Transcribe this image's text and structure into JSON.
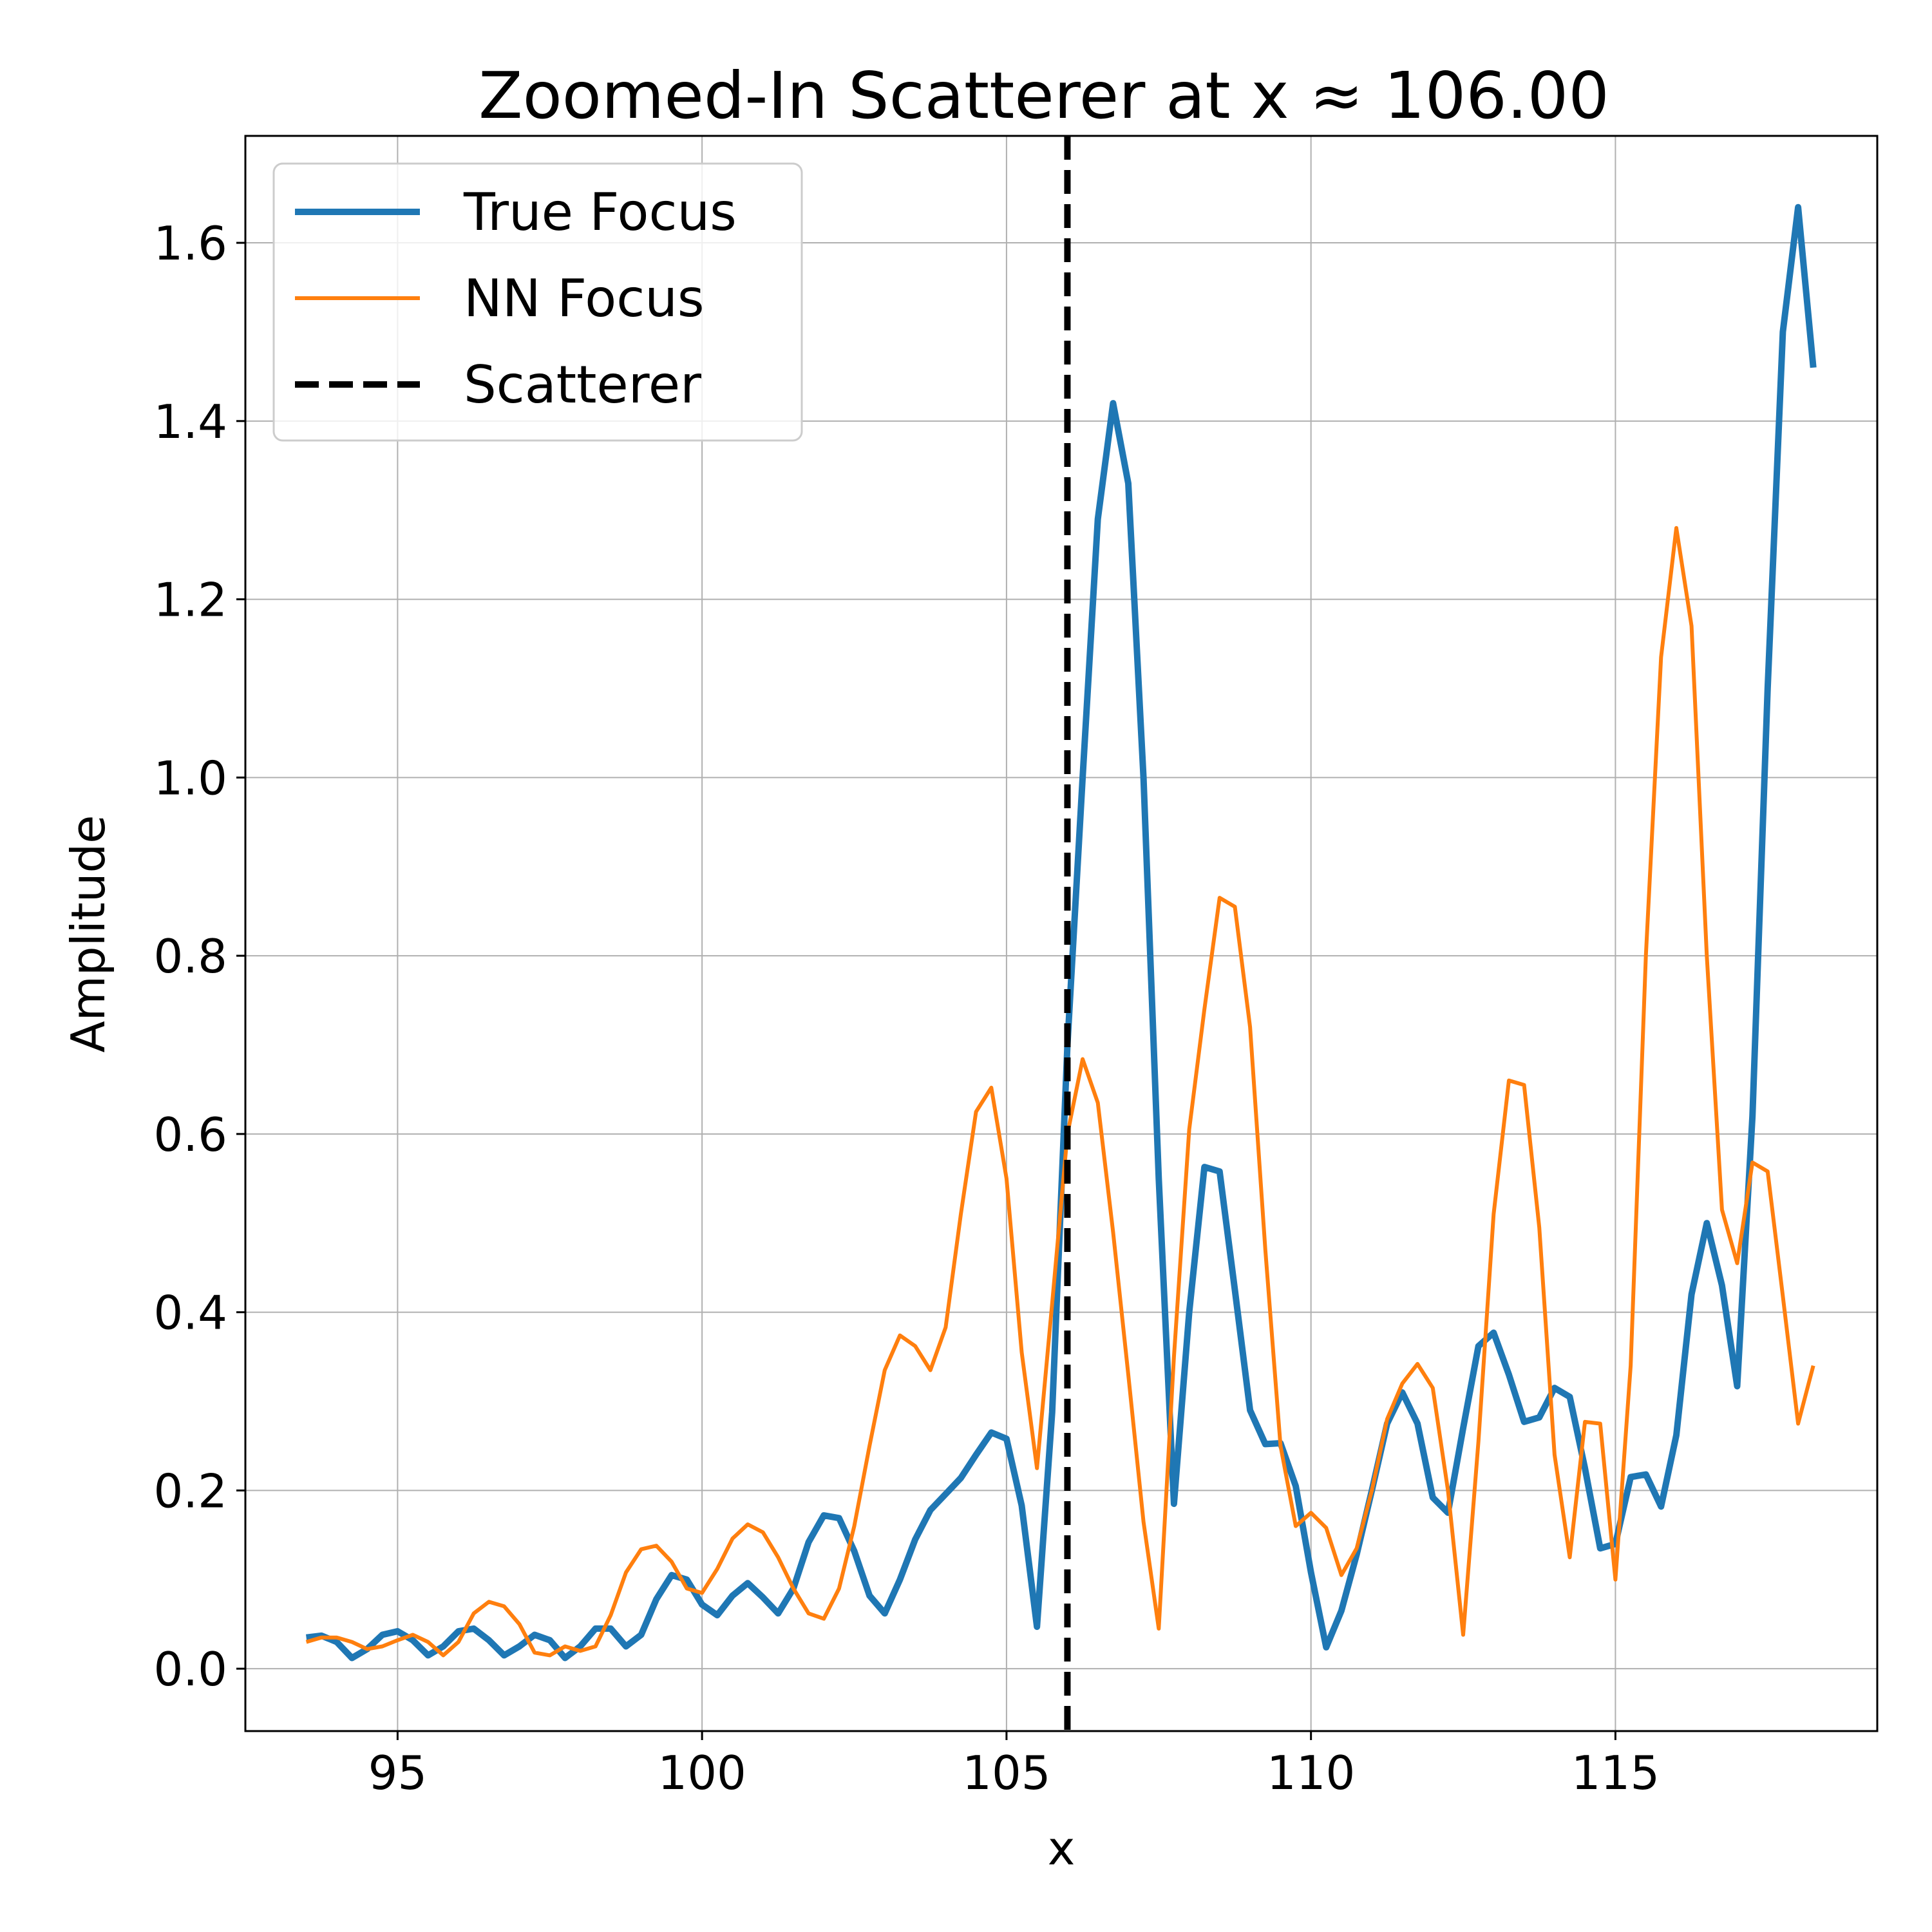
{
  "chart_data": {
    "type": "line",
    "title": "Zoomed-In Scatterer at x ≈ 106.00",
    "xlabel": "x",
    "ylabel": "Amplitude",
    "xlim": [
      92.5,
      119.3
    ],
    "ylim": [
      -0.07,
      1.72
    ],
    "xticks": [
      95,
      100,
      105,
      110,
      115
    ],
    "yticks": [
      0.0,
      0.2,
      0.4,
      0.6,
      0.8,
      1.0,
      1.2,
      1.4,
      1.6
    ],
    "xtick_labels": [
      "95",
      "100",
      "105",
      "110",
      "115"
    ],
    "ytick_labels": [
      "0.0",
      "0.2",
      "0.4",
      "0.6",
      "0.8",
      "1.0",
      "1.2",
      "1.4",
      "1.6"
    ],
    "grid": true,
    "legend_position": "upper left",
    "x": [
      93.5,
      93.75,
      94.0,
      94.25,
      94.5,
      94.75,
      95.0,
      95.25,
      95.5,
      95.75,
      96.0,
      96.25,
      96.5,
      96.75,
      97.0,
      97.25,
      97.5,
      97.75,
      98.0,
      98.25,
      98.5,
      98.75,
      99.0,
      99.25,
      99.5,
      99.75,
      100.0,
      100.25,
      100.5,
      100.75,
      101.0,
      101.25,
      101.5,
      101.75,
      102.0,
      102.25,
      102.5,
      102.75,
      103.0,
      103.25,
      103.5,
      103.75,
      104.0,
      104.25,
      104.5,
      104.75,
      105.0,
      105.25,
      105.5,
      105.75,
      106.0,
      106.25,
      106.5,
      106.75,
      107.0,
      107.25,
      107.5,
      107.75,
      108.0,
      108.25,
      108.5,
      108.75,
      109.0,
      109.25,
      109.5,
      109.75,
      110.0,
      110.25,
      110.5,
      110.75,
      111.0,
      111.25,
      111.5,
      111.75,
      112.0,
      112.25,
      112.5,
      112.75,
      113.0,
      113.25,
      113.5,
      113.75,
      114.0,
      114.25,
      114.5,
      114.75,
      115.0,
      115.25,
      115.5,
      115.75,
      116.0,
      116.25,
      116.5,
      116.75,
      117.0,
      117.25,
      117.5,
      117.75,
      118.0,
      118.25
    ],
    "series": [
      {
        "name": "True Focus",
        "color": "#1f77b4",
        "linewidth": "thick",
        "values": [
          0.035,
          0.037,
          0.03,
          0.012,
          0.022,
          0.038,
          0.042,
          0.032,
          0.015,
          0.025,
          0.042,
          0.045,
          0.032,
          0.015,
          0.025,
          0.038,
          0.032,
          0.012,
          0.025,
          0.045,
          0.045,
          0.025,
          0.038,
          0.078,
          0.105,
          0.1,
          0.072,
          0.06,
          0.082,
          0.096,
          0.08,
          0.062,
          0.09,
          0.142,
          0.172,
          0.169,
          0.132,
          0.082,
          0.062,
          0.1,
          0.145,
          0.178,
          0.196,
          0.214,
          0.24,
          0.265,
          0.258,
          0.183,
          0.047,
          0.288,
          0.7,
          1.0,
          1.29,
          1.42,
          1.33,
          1.0,
          0.55,
          0.185,
          0.4,
          0.563,
          0.558,
          0.425,
          0.29,
          0.252,
          0.253,
          0.205,
          0.108,
          0.024,
          0.065,
          0.128,
          0.2,
          0.275,
          0.31,
          0.275,
          0.192,
          0.175,
          0.27,
          0.362,
          0.377,
          0.33,
          0.277,
          0.282,
          0.315,
          0.305,
          0.225,
          0.135,
          0.14,
          0.215,
          0.218,
          0.182,
          0.262,
          0.42,
          0.5,
          0.43,
          0.317,
          0.62,
          1.1,
          1.5,
          1.64,
          1.46
        ]
      },
      {
        "name": "NN Focus",
        "color": "#ff7f0e",
        "linewidth": "thin",
        "values": [
          0.03,
          0.035,
          0.035,
          0.03,
          0.022,
          0.025,
          0.032,
          0.038,
          0.03,
          0.015,
          0.03,
          0.062,
          0.075,
          0.07,
          0.05,
          0.018,
          0.015,
          0.025,
          0.02,
          0.025,
          0.06,
          0.108,
          0.134,
          0.138,
          0.12,
          0.09,
          0.085,
          0.112,
          0.146,
          0.162,
          0.153,
          0.125,
          0.09,
          0.062,
          0.056,
          0.09,
          0.16,
          0.25,
          0.335,
          0.374,
          0.362,
          0.335,
          0.383,
          0.51,
          0.625,
          0.652,
          0.55,
          0.355,
          0.225,
          0.41,
          0.6,
          0.684,
          0.635,
          0.49,
          0.33,
          0.165,
          0.045,
          0.35,
          0.605,
          0.74,
          0.865,
          0.855,
          0.72,
          0.47,
          0.25,
          0.16,
          0.175,
          0.158,
          0.105,
          0.135,
          0.2,
          0.28,
          0.32,
          0.342,
          0.315,
          0.2,
          0.038,
          0.255,
          0.51,
          0.66,
          0.655,
          0.495,
          0.24,
          0.125,
          0.277,
          0.275,
          0.1,
          0.34,
          0.8,
          1.135,
          1.28,
          1.17,
          0.8,
          0.515,
          0.455,
          0.568,
          0.558,
          0.418,
          0.275,
          0.34
        ]
      },
      {
        "name": "Scatterer",
        "color": "#000000",
        "style": "dashed",
        "vline_x": 106.0
      }
    ]
  }
}
